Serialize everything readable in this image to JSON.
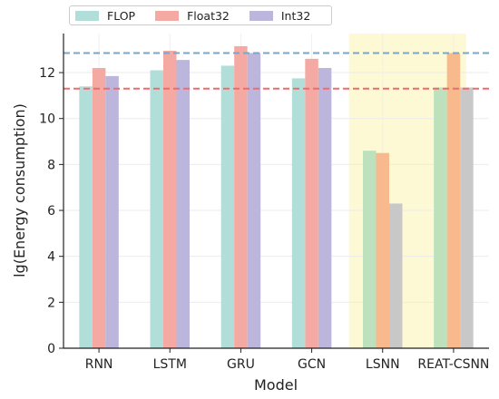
{
  "chart_data": {
    "type": "bar",
    "xlabel": "Model",
    "ylabel": "lg(Energy consumption)",
    "ylim": [
      0,
      13.7
    ],
    "yticks": [
      0,
      2,
      4,
      6,
      8,
      10,
      12
    ],
    "categories": [
      "RNN",
      "LSTM",
      "GRU",
      "GCN",
      "LSNN",
      "REAT-CSNN"
    ],
    "series": [
      {
        "name": "FLOP",
        "color": "#b2ded9",
        "values": [
          11.4,
          12.1,
          12.3,
          11.75,
          8.6,
          11.35
        ]
      },
      {
        "name": "Float32",
        "color": "#f4aaa3",
        "values": [
          12.2,
          12.95,
          13.15,
          12.6,
          8.5,
          12.85
        ]
      },
      {
        "name": "Int32",
        "color": "#bcb6dc",
        "values": [
          11.85,
          12.55,
          12.85,
          12.2,
          6.3,
          11.35
        ]
      }
    ],
    "highlight": {
      "categories": [
        "LSNN",
        "REAT-CSNN"
      ],
      "band_color": "#fcf9d4",
      "bar_colors": [
        "#bde0bd",
        "#f8b98c",
        "#c8c8c8"
      ]
    },
    "reference_lines": [
      {
        "y": 12.85,
        "color": "#7aa6c8",
        "style": "dashed"
      },
      {
        "y": 11.3,
        "color": "#ef6b6b",
        "style": "dashed"
      }
    ],
    "grid": true,
    "legend_position": "top-left"
  }
}
